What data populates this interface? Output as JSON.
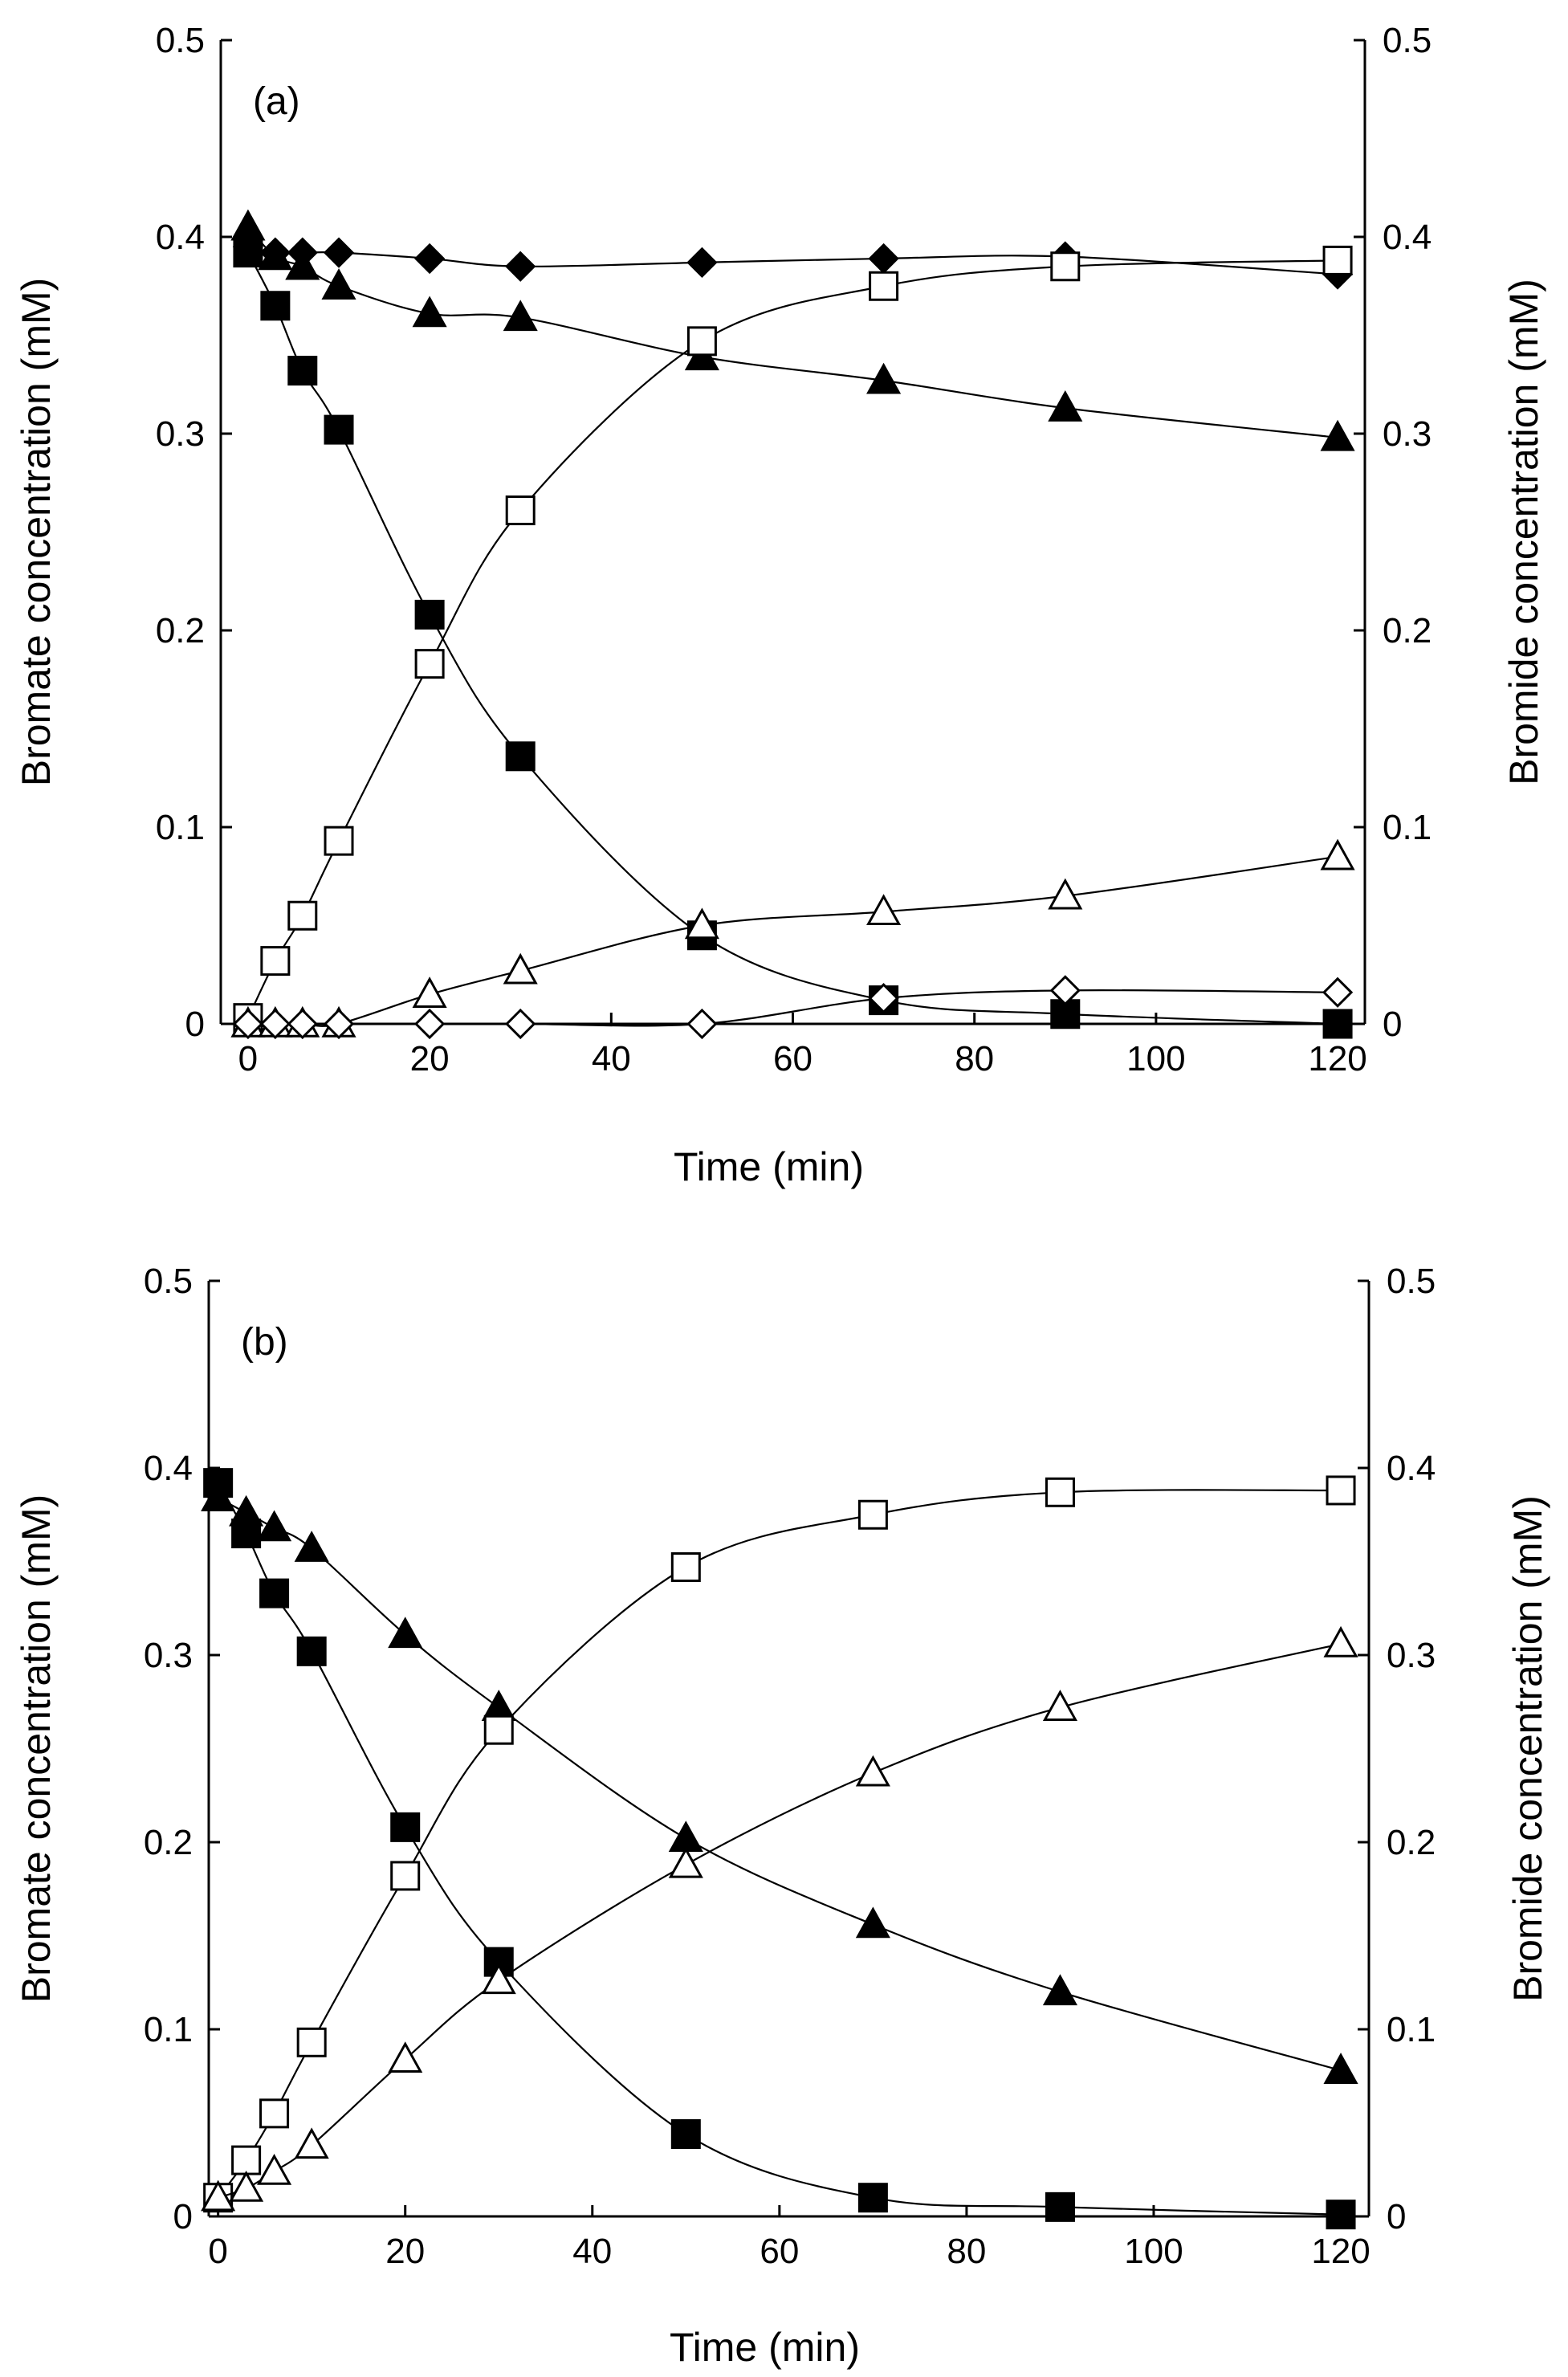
{
  "chart_data": [
    {
      "type": "scatter",
      "panel_label": "(a)",
      "xlabel": "Time (min)",
      "ylabel_left": "Bromate concentration (mM)",
      "ylabel_right": "Bromide concentration (mM)",
      "xlim": [
        -3,
        123
      ],
      "ylim": [
        0,
        0.5
      ],
      "x_ticks": [
        "0",
        "20",
        "40",
        "60",
        "80",
        "100",
        "120"
      ],
      "y_ticks_left": [
        "0",
        "0.1",
        "0.2",
        "0.3",
        "0.4",
        "0.5"
      ],
      "y_ticks_right": [
        "0",
        "0.1",
        "0.2",
        "0.3",
        "0.4",
        "0.5"
      ],
      "series": [
        {
          "name": "Bromate (filled diamond)",
          "marker": "diamond",
          "fill": "filled",
          "axis": "left",
          "x": [
            0,
            3,
            6,
            10,
            20,
            30,
            50,
            70,
            90,
            120
          ],
          "y": [
            0.395,
            0.392,
            0.392,
            0.392,
            0.389,
            0.385,
            0.387,
            0.389,
            0.39,
            0.381
          ]
        },
        {
          "name": "Bromate (filled triangle)",
          "marker": "triangle",
          "fill": "filled",
          "axis": "left",
          "x": [
            0,
            3,
            6,
            10,
            20,
            30,
            50,
            70,
            90,
            120
          ],
          "y": [
            0.405,
            0.39,
            0.385,
            0.375,
            0.361,
            0.359,
            0.339,
            0.327,
            0.313,
            0.298
          ]
        },
        {
          "name": "Bromate (filled square)",
          "marker": "square",
          "fill": "filled",
          "axis": "left",
          "x": [
            0,
            3,
            6,
            10,
            20,
            30,
            50,
            70,
            90,
            120
          ],
          "y": [
            0.392,
            0.365,
            0.332,
            0.302,
            0.208,
            0.136,
            0.045,
            0.012,
            0.005,
            0.0
          ]
        },
        {
          "name": "Bromide (open square)",
          "marker": "square",
          "fill": "open",
          "axis": "right",
          "x": [
            0,
            3,
            6,
            10,
            20,
            30,
            50,
            70,
            90,
            120
          ],
          "y": [
            0.003,
            0.032,
            0.055,
            0.093,
            0.183,
            0.261,
            0.347,
            0.375,
            0.385,
            0.388
          ]
        },
        {
          "name": "Bromide (open triangle)",
          "marker": "triangle",
          "fill": "open",
          "axis": "right",
          "x": [
            0,
            3,
            6,
            10,
            20,
            30,
            50,
            70,
            90,
            120
          ],
          "y": [
            0.0,
            0.0,
            0.0,
            0.0,
            0.015,
            0.027,
            0.05,
            0.057,
            0.065,
            0.085
          ]
        },
        {
          "name": "Bromide (open diamond)",
          "marker": "diamond",
          "fill": "open",
          "axis": "right",
          "x": [
            0,
            3,
            6,
            10,
            20,
            30,
            50,
            70,
            90,
            120
          ],
          "y": [
            0.0,
            0.0,
            0.0,
            0.0,
            0.0,
            0.0,
            0.0,
            0.013,
            0.017,
            0.016
          ]
        }
      ]
    },
    {
      "type": "scatter",
      "panel_label": "(b)",
      "xlabel": "Time (min)",
      "ylabel_left": "Bromate concentration (mM)",
      "ylabel_right": "Bromide concentration (mM)",
      "xlim": [
        -1,
        123
      ],
      "ylim": [
        0,
        0.5
      ],
      "x_ticks": [
        "0",
        "20",
        "40",
        "60",
        "80",
        "100",
        "120"
      ],
      "y_ticks_left": [
        "0",
        "0.1",
        "0.2",
        "0.3",
        "0.4",
        "0.5"
      ],
      "y_ticks_right": [
        "0",
        "0.1",
        "0.2",
        "0.3",
        "0.4",
        "0.5"
      ],
      "series": [
        {
          "name": "Bromate (filled square)",
          "marker": "square",
          "fill": "filled",
          "axis": "left",
          "x": [
            0,
            3,
            6,
            10,
            20,
            30,
            50,
            70,
            90,
            120
          ],
          "y": [
            0.392,
            0.365,
            0.333,
            0.302,
            0.208,
            0.136,
            0.044,
            0.01,
            0.005,
            0.001
          ]
        },
        {
          "name": "Bromate (filled triangle)",
          "marker": "triangle",
          "fill": "filled",
          "axis": "left",
          "x": [
            0,
            3,
            6,
            10,
            20,
            30,
            50,
            70,
            90,
            120
          ],
          "y": [
            0.384,
            0.376,
            0.368,
            0.357,
            0.311,
            0.272,
            0.202,
            0.156,
            0.12,
            0.078
          ]
        },
        {
          "name": "Bromide (open square)",
          "marker": "square",
          "fill": "open",
          "axis": "right",
          "x": [
            0,
            3,
            6,
            10,
            20,
            30,
            50,
            70,
            90,
            120
          ],
          "y": [
            0.01,
            0.03,
            0.055,
            0.093,
            0.182,
            0.26,
            0.347,
            0.375,
            0.387,
            0.388
          ]
        },
        {
          "name": "Bromide (open triangle)",
          "marker": "triangle",
          "fill": "open",
          "axis": "right",
          "x": [
            0,
            3,
            6,
            10,
            20,
            30,
            50,
            70,
            90,
            120
          ],
          "y": [
            0.01,
            0.015,
            0.024,
            0.038,
            0.084,
            0.126,
            0.188,
            0.237,
            0.272,
            0.306
          ]
        }
      ]
    }
  ]
}
